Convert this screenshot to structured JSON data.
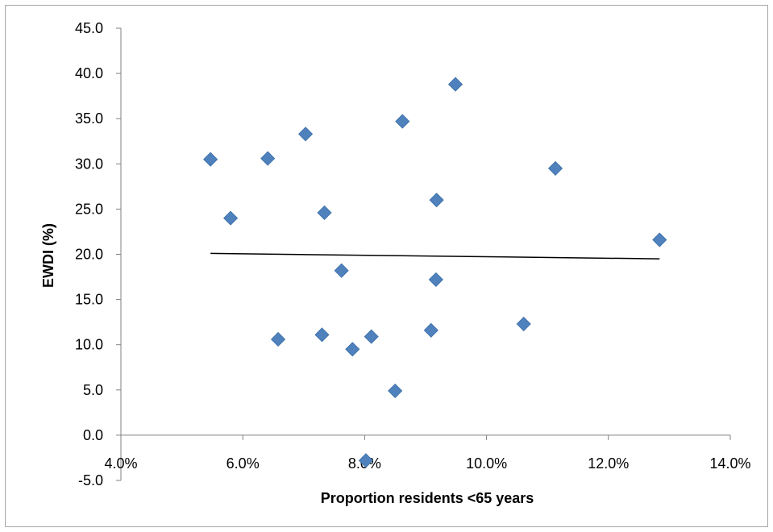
{
  "chart_data": {
    "type": "scatter",
    "xlabel": "Proportion residents <65 years",
    "ylabel": "EWDI (%)",
    "xlim": [
      0.04,
      0.14
    ],
    "ylim": [
      -5,
      45
    ],
    "x_ticks": [
      "4.0%",
      "6.0%",
      "8.0%",
      "10.0%",
      "12.0%",
      "14.0%"
    ],
    "y_ticks": [
      "-5.0",
      "0.0",
      "5.0",
      "10.0",
      "15.0",
      "20.0",
      "25.0",
      "30.0",
      "35.0",
      "40.0",
      "45.0"
    ],
    "grid": false,
    "legend": "none",
    "marker": "diamond",
    "marker_color": "#4f81bd",
    "trendline_color": "#000000",
    "series": [
      {
        "points": [
          {
            "x": 0.0547,
            "y": 30.5
          },
          {
            "x": 0.058,
            "y": 24.0
          },
          {
            "x": 0.0641,
            "y": 30.6
          },
          {
            "x": 0.0658,
            "y": 10.6
          },
          {
            "x": 0.0703,
            "y": 33.3
          },
          {
            "x": 0.073,
            "y": 11.1
          },
          {
            "x": 0.0734,
            "y": 24.6
          },
          {
            "x": 0.0762,
            "y": 18.2
          },
          {
            "x": 0.078,
            "y": 9.5
          },
          {
            "x": 0.0811,
            "y": 10.9
          },
          {
            "x": 0.0802,
            "y": -2.8
          },
          {
            "x": 0.085,
            "y": 4.9
          },
          {
            "x": 0.0862,
            "y": 34.7
          },
          {
            "x": 0.0909,
            "y": 11.6
          },
          {
            "x": 0.0917,
            "y": 17.2
          },
          {
            "x": 0.0918,
            "y": 26.0
          },
          {
            "x": 0.0949,
            "y": 38.8
          },
          {
            "x": 0.1061,
            "y": 12.3
          },
          {
            "x": 0.1113,
            "y": 29.5
          },
          {
            "x": 0.1284,
            "y": 21.6
          }
        ]
      }
    ],
    "trendline": {
      "x": [
        0.0547,
        0.1284
      ],
      "y": [
        20.1,
        19.5
      ]
    }
  }
}
